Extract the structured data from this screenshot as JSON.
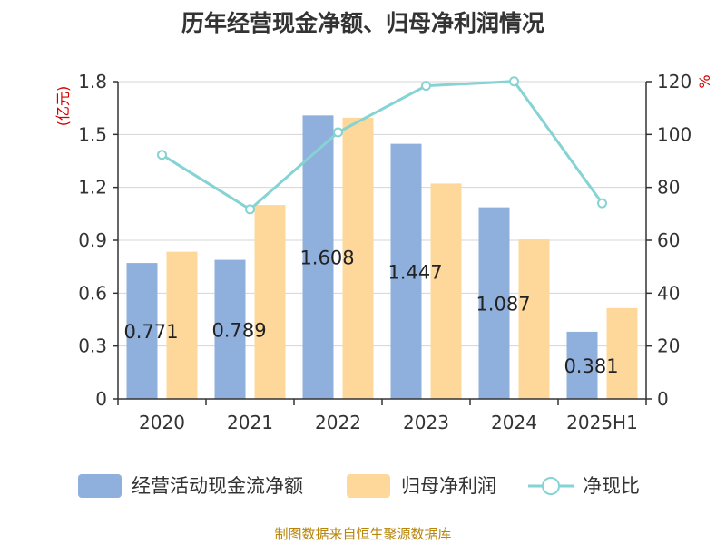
{
  "title": "历年经营现金净额、归母净利润情况",
  "source": "制图数据来自恒生聚源数据库",
  "colors": {
    "operating_cash": "#8fafdc",
    "net_profit": "#fdd89a",
    "ratio": "#86d3d4",
    "axis": "#333333",
    "grid": "#d5d5d5",
    "unit": "#d40000"
  },
  "chart_data": {
    "type": "bar",
    "title": "历年经营现金净额、归母净利润情况",
    "categories": [
      "2020",
      "2021",
      "2022",
      "2023",
      "2024",
      "2025H1"
    ],
    "left_axis": {
      "unit": "(亿元)",
      "ylim": [
        0,
        1.8
      ],
      "ticks": [
        "0",
        "0.3",
        "0.6",
        "0.9",
        "1.2",
        "1.5",
        "1.8"
      ]
    },
    "right_axis": {
      "unit": "%",
      "ylim": [
        0,
        120
      ],
      "ticks": [
        "0",
        "20",
        "40",
        "60",
        "80",
        "100",
        "120"
      ]
    },
    "grid": true,
    "legend_position": "bottom",
    "series": [
      {
        "name": "经营活动现金流净额",
        "type": "bar",
        "axis": "left",
        "values": [
          0.771,
          0.789,
          1.608,
          1.447,
          1.087,
          0.381
        ],
        "labels": [
          "0.771",
          "0.789",
          "1.608",
          "1.447",
          "1.087",
          "0.381"
        ]
      },
      {
        "name": "归母净利润",
        "type": "bar",
        "axis": "left",
        "values": [
          0.835,
          1.1,
          1.595,
          1.222,
          0.905,
          0.515
        ]
      },
      {
        "name": "净现比",
        "type": "line",
        "axis": "right",
        "values": [
          92.3,
          71.7,
          100.8,
          118.4,
          120.1,
          74.0
        ]
      }
    ]
  }
}
